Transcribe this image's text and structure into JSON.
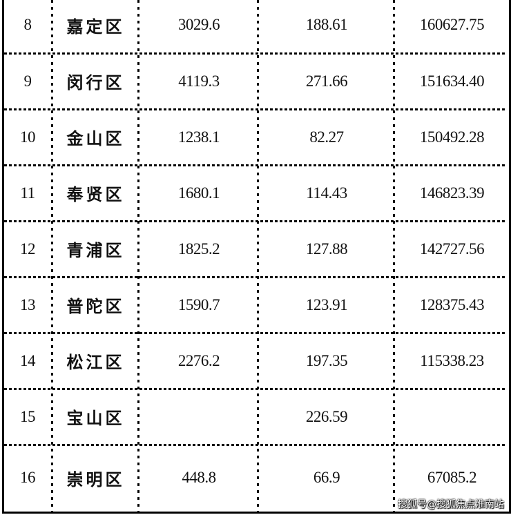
{
  "table": {
    "rows": [
      {
        "rank": "8",
        "district": "嘉定区",
        "col3": "3029.6",
        "col4": "188.61",
        "col5": "160627.75"
      },
      {
        "rank": "9",
        "district": "闵行区",
        "col3": "4119.3",
        "col4": "271.66",
        "col5": "151634.40"
      },
      {
        "rank": "10",
        "district": "金山区",
        "col3": "1238.1",
        "col4": "82.27",
        "col5": "150492.28"
      },
      {
        "rank": "11",
        "district": "奉贤区",
        "col3": "1680.1",
        "col4": "114.43",
        "col5": "146823.39"
      },
      {
        "rank": "12",
        "district": "青浦区",
        "col3": "1825.2",
        "col4": "127.88",
        "col5": "142727.56"
      },
      {
        "rank": "13",
        "district": "普陀区",
        "col3": "1590.7",
        "col4": "123.91",
        "col5": "128375.43"
      },
      {
        "rank": "14",
        "district": "松江区",
        "col3": "2276.2",
        "col4": "197.35",
        "col5": "115338.23"
      },
      {
        "rank": "15",
        "district": "宝山区",
        "col3": "",
        "col4": "226.59",
        "col5": ""
      },
      {
        "rank": "16",
        "district": "崇明区",
        "col3": "448.8",
        "col4": "66.9",
        "col5": "67085.2"
      }
    ]
  },
  "watermark": "搜狐号@搜狐焦点淮南站"
}
